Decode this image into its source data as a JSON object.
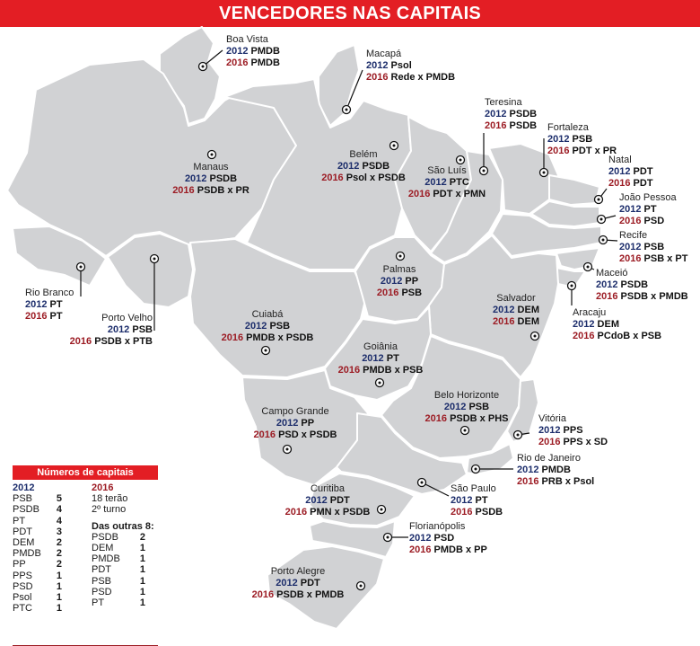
{
  "title": "VENCEDORES NAS CAPITAIS",
  "capitals": [
    {
      "city": "Boa Vista",
      "r2012": "PMDB",
      "r2016": "PMDB"
    },
    {
      "city": "Macapá",
      "r2012": "Psol",
      "r2016": "Rede x PMDB"
    },
    {
      "city": "Manaus",
      "r2012": "PSDB",
      "r2016": "PSDB x PR"
    },
    {
      "city": "Belém",
      "r2012": "PSDB",
      "r2016": "Psol x PSDB"
    },
    {
      "city": "Teresina",
      "r2012": "PSDB",
      "r2016": "PSDB"
    },
    {
      "city": "São Luís",
      "r2012": "PTC",
      "r2016": "PDT x PMN"
    },
    {
      "city": "Fortaleza",
      "r2012": "PSB",
      "r2016": "PDT x PR"
    },
    {
      "city": "Natal",
      "r2012": "PDT",
      "r2016": "PDT"
    },
    {
      "city": "João Pessoa",
      "r2012": "PT",
      "r2016": "PSD"
    },
    {
      "city": "Recife",
      "r2012": "PSB",
      "r2016": "PSB x PT"
    },
    {
      "city": "Maceió",
      "r2012": "PSDB",
      "r2016": "PSDB x PMDB"
    },
    {
      "city": "Aracaju",
      "r2012": "DEM",
      "r2016": "PCdoB x PSB"
    },
    {
      "city": "Rio Branco",
      "r2012": "PT",
      "r2016": "PT"
    },
    {
      "city": "Porto Velho",
      "r2012": "PSB",
      "r2016": "PSDB x PTB"
    },
    {
      "city": "Palmas",
      "r2012": "PP",
      "r2016": "PSB"
    },
    {
      "city": "Salvador",
      "r2012": "DEM",
      "r2016": "DEM"
    },
    {
      "city": "Cuiabá",
      "r2012": "PSB",
      "r2016": "PMDB x PSDB"
    },
    {
      "city": "Goiânia",
      "r2012": "PT",
      "r2016": "PMDB x PSB"
    },
    {
      "city": "Belo Horizonte",
      "r2012": "PSB",
      "r2016": "PSDB x PHS"
    },
    {
      "city": "Campo Grande",
      "r2012": "PP",
      "r2016": "PSD x PSDB"
    },
    {
      "city": "Vitória",
      "r2012": "PPS",
      "r2016": "PPS x SD"
    },
    {
      "city": "Rio de Janeiro",
      "r2012": "PMDB",
      "r2016": "PRB x Psol"
    },
    {
      "city": "São Paulo",
      "r2012": "PT",
      "r2016": "PSDB"
    },
    {
      "city": "Curitiba",
      "r2012": "PDT",
      "r2016": "PMN x PSDB"
    },
    {
      "city": "Florianópolis",
      "r2012": "PSD",
      "r2016": "PMDB x PP"
    },
    {
      "city": "Porto Alegre",
      "r2012": "PDT",
      "r2016": "PSDB x PMDB"
    }
  ],
  "year2012": "2012",
  "year2016": "2016",
  "legend": {
    "title": "Números de capitais",
    "col2012_header": "2012",
    "col2012": [
      {
        "party": "PSB",
        "count": "5"
      },
      {
        "party": "PSDB",
        "count": "4"
      },
      {
        "party": "PT",
        "count": "4"
      },
      {
        "party": "PDT",
        "count": "3"
      },
      {
        "party": "DEM",
        "count": "2"
      },
      {
        "party": "PMDB",
        "count": "2"
      },
      {
        "party": "PP",
        "count": "2"
      },
      {
        "party": "PPS",
        "count": "1"
      },
      {
        "party": "PSD",
        "count": "1"
      },
      {
        "party": "Psol",
        "count": "1"
      },
      {
        "party": "PTC",
        "count": "1"
      }
    ],
    "col2016_header": "2016",
    "col2016_note1": "18 terão",
    "col2016_note2": "2º turno",
    "col2016_sub": "Das outras 8:",
    "col2016": [
      {
        "party": "PSDB",
        "count": "2"
      },
      {
        "party": "DEM",
        "count": "1"
      },
      {
        "party": "PMDB",
        "count": "1"
      },
      {
        "party": "PDT",
        "count": "1"
      },
      {
        "party": "PSB",
        "count": "1"
      },
      {
        "party": "PSD",
        "count": "1"
      },
      {
        "party": "PT",
        "count": "1"
      }
    ]
  }
}
